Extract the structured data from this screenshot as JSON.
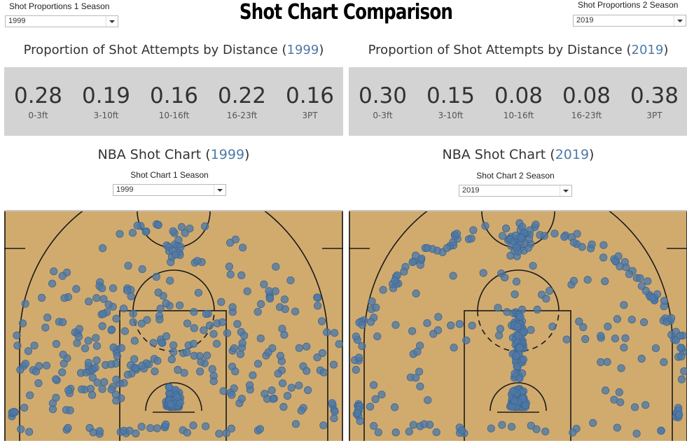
{
  "title": "Shot Chart Comparison",
  "filters": {
    "left": {
      "label": "Shot Proportions 1 Season",
      "value": "1999"
    },
    "right": {
      "label": "Shot Proportions 2 Season",
      "value": "2019"
    }
  },
  "proportions": {
    "title_prefix": "Proportion of Shot Attempts by Distance (",
    "title_suffix": ")",
    "left": {
      "year": "1999",
      "stats": [
        {
          "value": "0.28",
          "label": "0-3ft"
        },
        {
          "value": "0.19",
          "label": "3-10ft"
        },
        {
          "value": "0.16",
          "label": "10-16ft"
        },
        {
          "value": "0.22",
          "label": "16-23ft"
        },
        {
          "value": "0.16",
          "label": "3PT"
        }
      ]
    },
    "right": {
      "year": "2019",
      "stats": [
        {
          "value": "0.30",
          "label": "0-3ft"
        },
        {
          "value": "0.15",
          "label": "3-10ft"
        },
        {
          "value": "0.08",
          "label": "10-16ft"
        },
        {
          "value": "0.08",
          "label": "16-23ft"
        },
        {
          "value": "0.38",
          "label": "3PT"
        }
      ]
    }
  },
  "shot_charts": {
    "title_prefix": "NBA Shot Chart (",
    "title_suffix": ")",
    "left": {
      "year": "1999",
      "filter_label": "Shot Chart 1 Season",
      "filter_value": "1999"
    },
    "right": {
      "year": "2019",
      "filter_label": "Shot Chart 2 Season",
      "filter_value": "2019"
    }
  },
  "colors": {
    "court": "#d1ab6e",
    "marker": "#4e79a7",
    "stat_bg": "#d3d3d3",
    "accent": "#4e79a7"
  },
  "chart_data": [
    {
      "type": "scatter",
      "title": "NBA Shot Chart (1999)",
      "shot_distribution": {
        "0-3ft": 0.28,
        "3-10ft": 0.19,
        "10-16ft": 0.16,
        "16-23ft": 0.22,
        "3PT": 0.16
      }
    },
    {
      "type": "scatter",
      "title": "NBA Shot Chart (2019)",
      "shot_distribution": {
        "0-3ft": 0.3,
        "3-10ft": 0.15,
        "10-16ft": 0.08,
        "16-23ft": 0.08,
        "3PT": 0.38
      }
    }
  ]
}
